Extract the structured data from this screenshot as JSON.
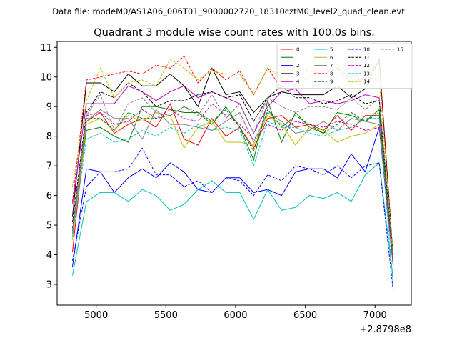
{
  "header": {
    "data_file": "Data file: modeM0/AS1A06_006T01_9000002720_18310cztM0_level2_quad_clean.evt"
  },
  "chart_data": {
    "type": "line",
    "title": "Quadrant 3 module wise count rates with 100.0s bins.",
    "xlabel": "",
    "ylabel": "",
    "x_offset_label": "+2.8798e8",
    "xlim": [
      4720,
      7260
    ],
    "ylim": [
      2.3,
      11.2
    ],
    "xticks": [
      5000,
      5500,
      6000,
      6500,
      7000
    ],
    "yticks": [
      3,
      4,
      5,
      6,
      7,
      8,
      9,
      10,
      11
    ],
    "grid": false,
    "legend_position": "top-right",
    "x": [
      4830,
      4930,
      5030,
      5130,
      5230,
      5330,
      5430,
      5530,
      5630,
      5730,
      5830,
      5930,
      6030,
      6130,
      6230,
      6330,
      6430,
      6530,
      6630,
      6730,
      6830,
      6930,
      7030,
      7130
    ],
    "series": [
      {
        "name": "0",
        "color": "#ff0000",
        "dash": "solid",
        "values": [
          4.1,
          8.5,
          8.8,
          8.1,
          8.4,
          8.6,
          8.3,
          9.1,
          7.9,
          7.7,
          8.6,
          8.0,
          8.3,
          7.6,
          8.6,
          8.7,
          8.3,
          8.4,
          8.2,
          8.7,
          8.2,
          8.7,
          8.7,
          3.9
        ]
      },
      {
        "name": "1",
        "color": "#007f00",
        "dash": "solid",
        "values": [
          4.8,
          8.2,
          8.3,
          8.0,
          7.8,
          9.0,
          9.0,
          8.9,
          8.8,
          8.8,
          8.4,
          9.0,
          8.3,
          7.2,
          9.2,
          7.8,
          8.8,
          8.3,
          8.1,
          8.8,
          8.7,
          8.5,
          8.9,
          3.8
        ]
      },
      {
        "name": "2",
        "color": "#0000ff",
        "dash": "solid",
        "values": [
          3.6,
          6.9,
          6.8,
          6.1,
          6.6,
          6.9,
          6.6,
          7.1,
          6.8,
          6.2,
          6.1,
          6.6,
          6.6,
          6.1,
          6.2,
          6.0,
          6.8,
          6.9,
          6.9,
          6.6,
          7.4,
          6.8,
          8.3,
          3.7
        ]
      },
      {
        "name": "3",
        "color": "#000000",
        "dash": "solid",
        "values": [
          5.3,
          9.8,
          9.8,
          9.5,
          10.1,
          9.7,
          9.7,
          10.1,
          9.7,
          9.0,
          10.3,
          9.4,
          9.5,
          8.8,
          9.3,
          9.5,
          9.4,
          9.4,
          9.4,
          9.7,
          9.3,
          9.6,
          10.6,
          3.9
        ]
      },
      {
        "name": "4",
        "color": "#bf00bf",
        "dash": "solid",
        "values": [
          5.7,
          9.1,
          9.1,
          9.1,
          9.7,
          9.5,
          9.2,
          9.5,
          9.7,
          9.3,
          9.5,
          9.3,
          9.1,
          8.1,
          9.0,
          9.5,
          9.6,
          9.1,
          9.2,
          9.1,
          9.2,
          9.4,
          9.3,
          3.8
        ]
      },
      {
        "name": "5",
        "color": "#00bfbf",
        "dash": "solid",
        "values": [
          3.3,
          5.8,
          6.1,
          6.1,
          5.8,
          6.2,
          6.0,
          5.5,
          5.7,
          6.2,
          6.5,
          6.1,
          6.1,
          5.2,
          6.2,
          5.5,
          5.6,
          6.0,
          5.9,
          6.1,
          5.8,
          6.7,
          7.1,
          3.2
        ]
      },
      {
        "name": "6",
        "color": "#bfbf00",
        "dash": "solid",
        "values": [
          4.5,
          8.4,
          8.6,
          8.2,
          8.7,
          8.5,
          8.8,
          8.7,
          7.6,
          8.3,
          8.5,
          7.8,
          7.8,
          7.7,
          8.7,
          8.4,
          7.7,
          8.3,
          8.2,
          7.8,
          8.0,
          8.1,
          8.4,
          3.6
        ]
      },
      {
        "name": "7",
        "color": "#7f7f7f",
        "dash": "solid",
        "values": [
          4.7,
          8.5,
          8.9,
          8.6,
          8.6,
          7.9,
          8.9,
          8.4,
          8.4,
          8.3,
          8.2,
          8.5,
          8.8,
          7.8,
          8.8,
          8.5,
          8.1,
          8.2,
          8.5,
          8.2,
          8.6,
          8.5,
          8.4,
          3.6
        ]
      },
      {
        "name": "8",
        "color": "#ff0000",
        "dash": "dashed",
        "values": [
          5.8,
          9.9,
          10.0,
          10.1,
          10.2,
          10.1,
          10.4,
          10.3,
          10.7,
          9.8,
          10.3,
          9.9,
          10.2,
          9.4,
          10.3,
          9.6,
          10.4,
          10.2,
          10.1,
          10.3,
          9.8,
          10.0,
          10.5,
          3.8
        ]
      },
      {
        "name": "9",
        "color": "#007f00",
        "dash": "dashed",
        "values": [
          4.9,
          8.6,
          8.6,
          8.2,
          8.8,
          8.6,
          8.6,
          8.7,
          9.0,
          8.8,
          8.5,
          8.9,
          8.3,
          7.5,
          8.9,
          8.3,
          8.7,
          8.4,
          8.1,
          8.4,
          8.8,
          8.5,
          8.8,
          3.7
        ]
      },
      {
        "name": "10",
        "color": "#0000ff",
        "dash": "dashed",
        "values": [
          3.8,
          6.3,
          6.8,
          6.8,
          6.9,
          7.6,
          6.7,
          6.7,
          6.3,
          6.5,
          6.1,
          6.6,
          6.5,
          6.0,
          6.7,
          6.5,
          7.0,
          6.9,
          6.7,
          7.0,
          6.6,
          7.0,
          7.1,
          2.8
        ]
      },
      {
        "name": "11",
        "color": "#000000",
        "dash": "dashed",
        "values": [
          5.1,
          8.8,
          9.5,
          9.3,
          9.8,
          9.5,
          9.0,
          9.2,
          9.2,
          9.4,
          9.5,
          9.3,
          9.4,
          8.5,
          9.3,
          9.7,
          9.3,
          9.3,
          9.1,
          9.2,
          9.4,
          9.1,
          9.2,
          3.9
        ]
      },
      {
        "name": "12",
        "color": "#bf00bf",
        "dash": "dashed",
        "values": [
          4.9,
          8.7,
          8.8,
          8.4,
          8.5,
          8.9,
          8.6,
          8.9,
          8.6,
          8.5,
          9.1,
          8.7,
          8.4,
          7.9,
          8.4,
          8.2,
          8.5,
          8.4,
          8.3,
          8.5,
          8.4,
          8.2,
          8.3,
          3.7
        ]
      },
      {
        "name": "13",
        "color": "#00bfbf",
        "dash": "dashed",
        "values": [
          4.6,
          7.9,
          8.1,
          7.8,
          7.9,
          8.2,
          8.0,
          8.3,
          8.1,
          8.4,
          8.2,
          8.3,
          8.2,
          7.0,
          8.5,
          8.3,
          8.3,
          8.1,
          8.0,
          8.2,
          8.3,
          8.6,
          8.6,
          3.0
        ]
      },
      {
        "name": "14",
        "color": "#bfbf00",
        "dash": "dashed",
        "values": [
          6.3,
          9.2,
          10.3,
          9.3,
          9.8,
          9.9,
          9.7,
          10.6,
          10.3,
          9.9,
          10.2,
          10.1,
          10.1,
          9.4,
          10.3,
          10.0,
          9.7,
          10.0,
          10.2,
          10.4,
          9.9,
          10.5,
          9.9,
          3.9
        ]
      },
      {
        "name": "15",
        "color": "#7f7f7f",
        "dash": "dashed",
        "values": [
          4.8,
          8.7,
          9.4,
          8.2,
          9.1,
          9.3,
          8.8,
          8.7,
          9.0,
          8.7,
          9.4,
          8.6,
          9.1,
          8.1,
          9.3,
          9.0,
          8.8,
          9.0,
          9.0,
          8.9,
          9.3,
          8.9,
          9.3,
          3.8
        ]
      }
    ]
  }
}
